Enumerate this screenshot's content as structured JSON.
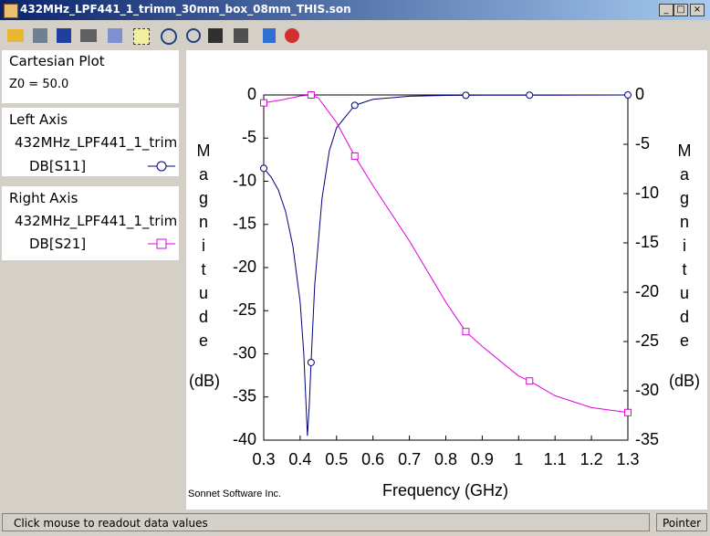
{
  "window": {
    "title": "432MHz_LPF441_1_trimm_30mm_box_08mm_THIS.son"
  },
  "sidebar": {
    "plot": {
      "title": "Cartesian Plot",
      "z0": "Z0 = 50.0"
    },
    "left_axis": {
      "title": "Left Axis",
      "file": "432MHz_LPF441_1_trim",
      "trace": "DB[S11]"
    },
    "right_axis": {
      "title": "Right Axis",
      "file": "432MHz_LPF441_1_trim",
      "trace": "DB[S21]"
    }
  },
  "status": {
    "message": "Click mouse to readout data values",
    "mode": "Pointer"
  },
  "chart_data": {
    "type": "line",
    "xlabel": "Frequency (GHz)",
    "ylabel": "Magnitude",
    "yunit": "(dB)",
    "y2label": "Magnitude",
    "y2unit": "(dB)",
    "credit": "Sonnet Software Inc.",
    "xlim": [
      0.3,
      1.3
    ],
    "xticks": [
      0.3,
      0.4,
      0.5,
      0.6,
      0.7,
      0.8,
      0.9,
      1,
      1.1,
      1.2,
      1.3
    ],
    "ylim": [
      -40,
      0
    ],
    "yticks": [
      0,
      -5,
      -10,
      -15,
      -20,
      -25,
      -30,
      -35,
      -40
    ],
    "y2lim": [
      -35,
      0
    ],
    "y2ticks": [
      0,
      -5,
      -10,
      -15,
      -20,
      -25,
      -30,
      -35
    ],
    "series": [
      {
        "name": "DB[S11]",
        "color": "#000080",
        "marker": "circle",
        "x": [
          0.3,
          0.32,
          0.34,
          0.36,
          0.38,
          0.4,
          0.41,
          0.42,
          0.425,
          0.43,
          0.44,
          0.46,
          0.48,
          0.5,
          0.55,
          0.6,
          0.7,
          0.8,
          0.9,
          1.0,
          1.1,
          1.2,
          1.3
        ],
        "values": [
          -8.5,
          -9.5,
          -11,
          -13.5,
          -17.5,
          -24,
          -30,
          -39.5,
          -36,
          -31,
          -22,
          -12,
          -6.5,
          -3.8,
          -1.2,
          -0.5,
          -0.15,
          -0.05,
          -0.03,
          -0.02,
          -0.02,
          -0.01,
          0
        ],
        "marker_x": [
          0.3,
          0.43,
          0.55,
          0.855,
          1.03,
          1.3
        ],
        "marker_values": [
          -8.5,
          -31,
          -1.2,
          -0.04,
          -0.02,
          0
        ]
      },
      {
        "name": "DB[S21]",
        "color": "#e000e0",
        "marker": "square",
        "axis": "y2",
        "x": [
          0.3,
          0.35,
          0.4,
          0.43,
          0.45,
          0.5,
          0.55,
          0.6,
          0.7,
          0.8,
          0.855,
          0.9,
          1.0,
          1.03,
          1.1,
          1.2,
          1.3
        ],
        "values": [
          -0.8,
          -0.5,
          -0.1,
          0,
          -0.3,
          -2.8,
          -6.2,
          -9.2,
          -14.8,
          -21,
          -24,
          -25.5,
          -28.5,
          -29,
          -30.5,
          -31.7,
          -32.2
        ],
        "marker_x": [
          0.3,
          0.43,
          0.55,
          0.855,
          1.03,
          1.3
        ],
        "marker_values": [
          -0.8,
          0,
          -6.2,
          -24,
          -29,
          -32.2
        ]
      }
    ]
  }
}
